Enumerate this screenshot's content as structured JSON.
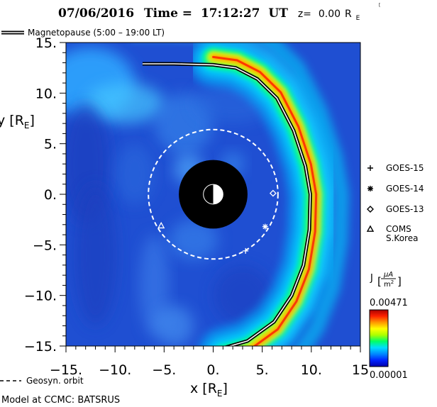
{
  "chart_data": {
    "type": "heatmap",
    "title": {
      "date": "07/06/2016",
      "time_label": "Time =",
      "time": "17:12:27",
      "time_unit": "UT",
      "z_label": "z=",
      "z_value": "0.00",
      "z_unit": "R",
      "z_unit_sub": "E"
    },
    "xlabel": {
      "main": "x [R",
      "sub": "E",
      "close": "]"
    },
    "ylabel": {
      "main": "y [R",
      "sub": "E",
      "close": "]"
    },
    "xlim": [
      -15,
      15
    ],
    "ylim": [
      -15,
      15
    ],
    "x_ticks": [
      {
        "v": -15,
        "label": "−15."
      },
      {
        "v": -10,
        "label": "−10."
      },
      {
        "v": -5,
        "label": "−5."
      },
      {
        "v": 0,
        "label": "0."
      },
      {
        "v": 5,
        "label": "5."
      },
      {
        "v": 10,
        "label": "10."
      },
      {
        "v": 15,
        "label": "15"
      }
    ],
    "y_ticks": [
      {
        "v": 15,
        "label": "15."
      },
      {
        "v": 10,
        "label": "10."
      },
      {
        "v": 5,
        "label": "5."
      },
      {
        "v": 0,
        "label": "0."
      },
      {
        "v": -5,
        "label": "−5."
      },
      {
        "v": -10,
        "label": "−10."
      },
      {
        "v": -15,
        "label": "−15."
      }
    ],
    "minor_tick_step": 1,
    "magnetopause": {
      "legend": "Magnetopause (5:00 – 19:00 LT)",
      "points": [
        [
          -7.2,
          12.9
        ],
        [
          -4,
          12.9
        ],
        [
          0,
          12.8
        ],
        [
          2.3,
          12.5
        ],
        [
          4.5,
          11.4
        ],
        [
          6.5,
          9.5
        ],
        [
          8.2,
          6.3
        ],
        [
          9.4,
          2.8
        ],
        [
          9.9,
          0
        ],
        [
          9.8,
          -3.5
        ],
        [
          9.2,
          -7
        ],
        [
          8,
          -10
        ],
        [
          6.2,
          -12.6
        ],
        [
          3.5,
          -14.5
        ],
        [
          1,
          -15.2
        ]
      ]
    },
    "geosyn_orbit": {
      "legend": "Geosyn. orbit",
      "radius": 6.6
    },
    "inner_boundary_radius": 3.5,
    "earth_radius": 1.0,
    "satellites": [
      {
        "name": "GOES-15",
        "marker": "plus",
        "x": 3.3,
        "y": -5.6
      },
      {
        "name": "GOES-14",
        "marker": "asterisk",
        "x": 5.3,
        "y": -3.2
      },
      {
        "name": "GOES-13",
        "marker": "diamond",
        "x": 6.1,
        "y": 0.1
      },
      {
        "name": "COMS",
        "name2": "S.Korea",
        "marker": "triangle",
        "x": -5.3,
        "y": -3.1
      }
    ],
    "colorbar": {
      "label_main": "J",
      "unit_num": "μA",
      "unit_den": "m",
      "unit_den_sup": "2",
      "max_label": "0.00471",
      "min_label": "0.00001",
      "colors": [
        "#0000aa",
        "#0022ff",
        "#0088ff",
        "#00ddff",
        "#00ff66",
        "#aaff00",
        "#ffff00",
        "#ff9900",
        "#ff2200",
        "#aa0000"
      ]
    },
    "field_colors": {
      "background": "#1f4fd2",
      "dark": "#1a3fc0",
      "light": "#3a8ff0",
      "cyan": "#00e0ff"
    }
  },
  "footer": {
    "model": "Model at CCMC: BATSRUS"
  }
}
